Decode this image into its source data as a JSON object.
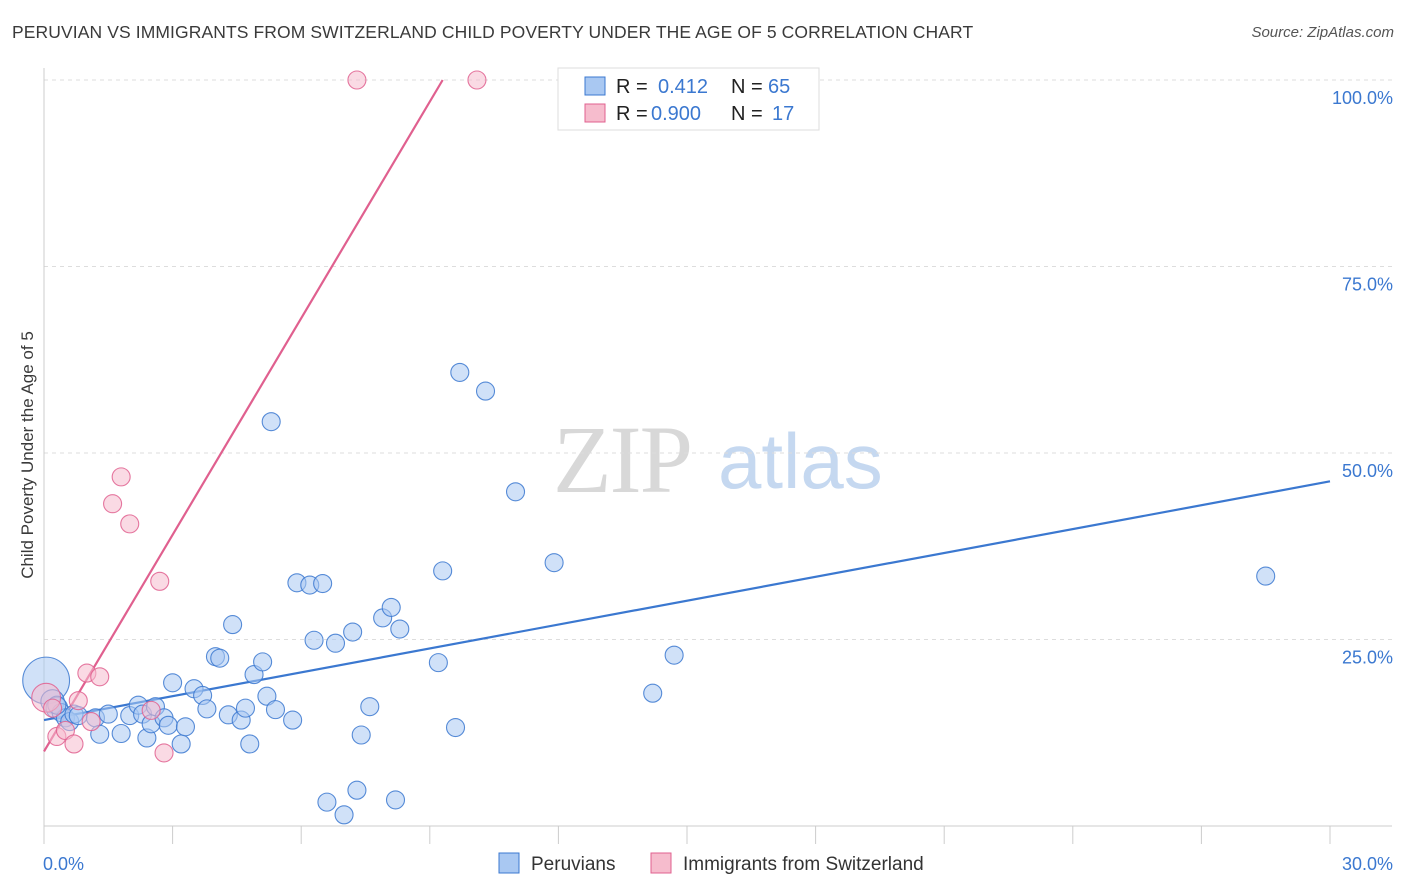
{
  "header": {
    "title": "PERUVIAN VS IMMIGRANTS FROM SWITZERLAND CHILD POVERTY UNDER THE AGE OF 5 CORRELATION CHART",
    "source": "Source: ZipAtlas.com"
  },
  "watermark": {
    "zip": "ZIP",
    "atlas": "atlas"
  },
  "colors": {
    "blue": "#3b78d0",
    "blue_fill": "#a9c8f2",
    "pink": "#e0608f",
    "pink_fill": "#f6bccd",
    "grid": "#dddddd"
  },
  "legend": {
    "rows": [
      {
        "r_label": "R =",
        "r_value": "0.412",
        "n_label": "N =",
        "n_value": "65"
      },
      {
        "r_label": "R =",
        "r_value": "0.900",
        "n_label": "N =",
        "n_value": "17"
      }
    ]
  },
  "chart_data": {
    "type": "scatter",
    "title": "PERUVIAN VS IMMIGRANTS FROM SWITZERLAND CHILD POVERTY UNDER THE AGE OF 5 CORRELATION CHART",
    "xlabel": "",
    "ylabel": "Child Poverty Under the Age of 5",
    "xlim": [
      0,
      30
    ],
    "ylim": [
      0,
      100
    ],
    "x_ticks": [
      0,
      30
    ],
    "x_tick_labels": [
      "0.0%",
      "30.0%"
    ],
    "y_ticks": [
      25,
      50,
      75,
      100
    ],
    "y_tick_labels": [
      "25.0%",
      "50.0%",
      "75.0%",
      "100.0%"
    ],
    "grid": true,
    "legend_position": "top-center",
    "series": [
      {
        "name": "Peruvians",
        "color": "#3b78d0",
        "r": 0.412,
        "n": 65,
        "trend": {
          "x": [
            0,
            30
          ],
          "y": [
            14.2,
            46.2
          ]
        },
        "points": [
          [
            0.05,
            19.5
          ],
          [
            0.2,
            16.7
          ],
          [
            0.3,
            15.8
          ],
          [
            0.4,
            15.2
          ],
          [
            0.5,
            14.5
          ],
          [
            0.6,
            14.0
          ],
          [
            0.7,
            15.0
          ],
          [
            0.8,
            14.8
          ],
          [
            1.2,
            14.5
          ],
          [
            1.3,
            12.3
          ],
          [
            1.5,
            15.0
          ],
          [
            1.8,
            12.4
          ],
          [
            2.0,
            14.8
          ],
          [
            2.2,
            16.2
          ],
          [
            2.3,
            15.0
          ],
          [
            2.4,
            11.8
          ],
          [
            2.5,
            13.7
          ],
          [
            2.6,
            16.0
          ],
          [
            2.8,
            14.5
          ],
          [
            2.9,
            13.5
          ],
          [
            3.0,
            19.2
          ],
          [
            3.2,
            11.0
          ],
          [
            3.3,
            13.3
          ],
          [
            3.5,
            18.4
          ],
          [
            3.7,
            17.5
          ],
          [
            3.8,
            15.7
          ],
          [
            4.0,
            22.7
          ],
          [
            4.1,
            22.5
          ],
          [
            4.3,
            14.9
          ],
          [
            4.4,
            27.0
          ],
          [
            4.6,
            14.2
          ],
          [
            4.7,
            15.8
          ],
          [
            4.8,
            11.0
          ],
          [
            4.9,
            20.3
          ],
          [
            5.1,
            22.0
          ],
          [
            5.2,
            17.4
          ],
          [
            5.3,
            54.2
          ],
          [
            5.4,
            15.6
          ],
          [
            5.8,
            14.2
          ],
          [
            5.9,
            32.6
          ],
          [
            6.2,
            32.3
          ],
          [
            6.3,
            24.9
          ],
          [
            6.5,
            32.5
          ],
          [
            6.6,
            3.2
          ],
          [
            6.8,
            24.5
          ],
          [
            7.0,
            1.5
          ],
          [
            7.2,
            26.0
          ],
          [
            7.3,
            4.8
          ],
          [
            7.4,
            12.2
          ],
          [
            7.6,
            16.0
          ],
          [
            7.9,
            27.9
          ],
          [
            8.1,
            29.3
          ],
          [
            8.2,
            3.5
          ],
          [
            8.3,
            26.4
          ],
          [
            9.2,
            21.9
          ],
          [
            9.3,
            34.2
          ],
          [
            9.6,
            13.2
          ],
          [
            9.7,
            60.8
          ],
          [
            10.3,
            58.3
          ],
          [
            11.0,
            44.8
          ],
          [
            11.9,
            35.3
          ],
          [
            14.2,
            17.8
          ],
          [
            14.7,
            22.9
          ],
          [
            28.5,
            33.5
          ],
          [
            0.3,
            16.2
          ]
        ],
        "sizes": [
          2.6,
          1.3,
          1.2,
          1,
          1,
          1,
          1,
          1,
          1,
          1,
          1,
          1,
          1,
          1,
          1,
          1,
          1,
          1,
          1,
          1,
          1,
          1,
          1,
          1,
          1,
          1,
          1,
          1,
          1,
          1,
          1,
          1,
          1,
          1,
          1,
          1,
          1,
          1,
          1,
          1,
          1,
          1,
          1,
          1,
          1,
          1,
          1,
          1,
          1,
          1,
          1,
          1,
          1,
          1,
          1,
          1,
          1,
          1,
          1,
          1,
          1,
          1,
          1,
          1,
          1
        ]
      },
      {
        "name": "Immigrants from Switzerland",
        "color": "#e0608f",
        "r": 0.9,
        "n": 17,
        "trend": {
          "x": [
            0,
            9.3
          ],
          "y": [
            10.0,
            100.0
          ]
        },
        "points": [
          [
            0.05,
            17.2
          ],
          [
            0.2,
            15.8
          ],
          [
            0.3,
            12.0
          ],
          [
            0.5,
            12.8
          ],
          [
            0.7,
            11.0
          ],
          [
            0.8,
            16.8
          ],
          [
            1.0,
            20.5
          ],
          [
            1.1,
            14.0
          ],
          [
            1.3,
            20.0
          ],
          [
            1.6,
            43.2
          ],
          [
            1.8,
            46.8
          ],
          [
            2.0,
            40.5
          ],
          [
            2.5,
            15.5
          ],
          [
            2.7,
            32.8
          ],
          [
            2.8,
            9.8
          ],
          [
            7.3,
            100.0
          ],
          [
            10.1,
            100.0
          ]
        ],
        "sizes": [
          1.6,
          1,
          1,
          1,
          1,
          1,
          1,
          1,
          1,
          1,
          1,
          1,
          1,
          1,
          1,
          1,
          1
        ]
      }
    ]
  }
}
